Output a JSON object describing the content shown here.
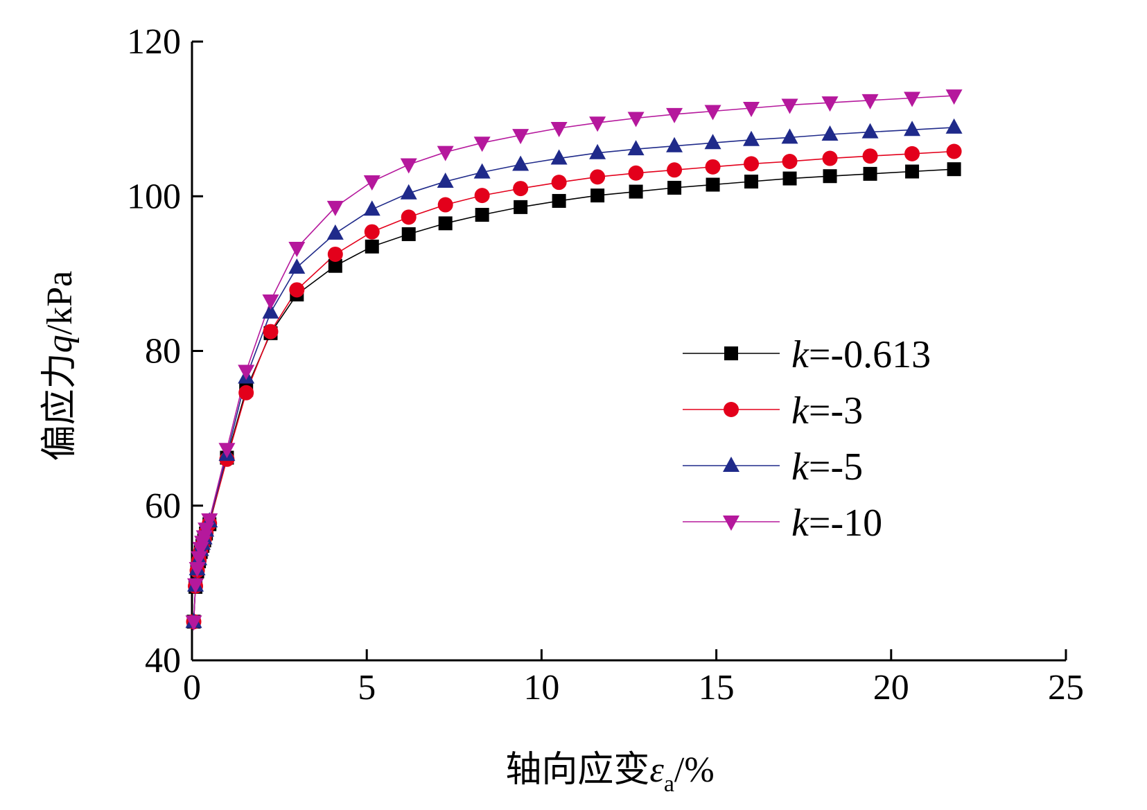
{
  "chart_data": {
    "type": "line",
    "xlabel": {
      "main": "轴向应变",
      "sym": "ε",
      "sub": "a",
      "unit": "/%"
    },
    "ylabel": {
      "main": "偏应力",
      "sym": "q",
      "unit": "/kPa"
    },
    "xlim": [
      0,
      25
    ],
    "ylim": [
      40,
      120
    ],
    "xticks": [
      0,
      5,
      10,
      15,
      20,
      25
    ],
    "yticks": [
      40,
      60,
      80,
      100,
      120
    ],
    "legend_position": "center-right",
    "series": [
      {
        "name_sym": "k",
        "name_val": "=-0.613",
        "color": "#000000",
        "marker": "square",
        "x": [
          0.05,
          0.1,
          0.15,
          0.2,
          0.25,
          0.3,
          0.35,
          0.4,
          0.5,
          1.0,
          1.55,
          2.25,
          3.0,
          4.1,
          5.15,
          6.2,
          7.25,
          8.3,
          9.4,
          10.5,
          11.6,
          12.7,
          13.8,
          14.9,
          16.0,
          17.1,
          18.25,
          19.4,
          20.6,
          21.8
        ],
        "y": [
          45,
          49.5,
          51.5,
          52.8,
          54,
          54.8,
          55.5,
          56.4,
          57.6,
          66.2,
          75,
          82.3,
          87.3,
          91,
          93.5,
          95.1,
          96.5,
          97.6,
          98.6,
          99.4,
          100.1,
          100.6,
          101.1,
          101.5,
          101.9,
          102.3,
          102.6,
          102.9,
          103.2,
          103.5
        ]
      },
      {
        "name_sym": "k",
        "name_val": "=-3",
        "color": "#e3001b",
        "marker": "circle",
        "x": [
          0.05,
          0.1,
          0.15,
          0.2,
          0.25,
          0.3,
          0.35,
          0.4,
          0.5,
          1.0,
          1.55,
          2.25,
          3.0,
          4.1,
          5.15,
          6.2,
          7.25,
          8.3,
          9.4,
          10.5,
          11.6,
          12.7,
          13.8,
          14.9,
          16.0,
          17.1,
          18.25,
          19.4,
          20.6,
          21.8
        ],
        "y": [
          45,
          49.6,
          51.6,
          52.9,
          54.1,
          54.9,
          55.6,
          56.5,
          57.7,
          66,
          74.6,
          82.5,
          87.9,
          92.5,
          95.4,
          97.3,
          98.9,
          100.1,
          101,
          101.8,
          102.5,
          103,
          103.4,
          103.8,
          104.2,
          104.5,
          104.9,
          105.2,
          105.5,
          105.8
        ]
      },
      {
        "name_sym": "k",
        "name_val": "=-5",
        "color": "#1f2a8a",
        "marker": "triangle-up",
        "x": [
          0.05,
          0.1,
          0.15,
          0.2,
          0.25,
          0.3,
          0.35,
          0.4,
          0.5,
          1.0,
          1.55,
          2.25,
          3.0,
          4.1,
          5.15,
          6.2,
          7.25,
          8.3,
          9.4,
          10.5,
          11.6,
          12.7,
          13.8,
          14.9,
          16.0,
          17.1,
          18.25,
          19.4,
          20.6,
          21.8
        ],
        "y": [
          45,
          49.7,
          51.8,
          53.1,
          54.3,
          55.1,
          55.8,
          56.8,
          58,
          66.6,
          76.6,
          85,
          90.8,
          95.2,
          98.3,
          100.4,
          101.9,
          103.1,
          104.1,
          104.9,
          105.6,
          106.1,
          106.5,
          106.9,
          107.3,
          107.6,
          108,
          108.3,
          108.6,
          108.9
        ]
      },
      {
        "name_sym": "k",
        "name_val": "=-10",
        "color": "#b5189c",
        "marker": "triangle-down",
        "x": [
          0.05,
          0.1,
          0.15,
          0.2,
          0.25,
          0.3,
          0.35,
          0.4,
          0.5,
          1.0,
          1.55,
          2.25,
          3.0,
          4.1,
          5.15,
          6.2,
          7.25,
          8.3,
          9.4,
          10.5,
          11.6,
          12.7,
          13.8,
          14.9,
          16.0,
          17.1,
          18.25,
          19.4,
          20.6,
          21.8
        ],
        "y": [
          45,
          49.8,
          51.9,
          53.3,
          54.5,
          55.3,
          56,
          57,
          58.2,
          67.3,
          77.4,
          86.5,
          93.3,
          98.6,
          101.9,
          104.1,
          105.7,
          106.9,
          107.9,
          108.8,
          109.5,
          110.1,
          110.6,
          111,
          111.4,
          111.8,
          112.1,
          112.4,
          112.7,
          113
        ]
      }
    ]
  }
}
